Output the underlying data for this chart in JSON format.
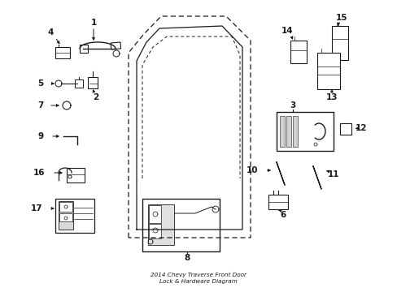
{
  "bg_color": "#ffffff",
  "line_color": "#1a1a1a",
  "title": "2014 Chevy Traverse Front Door\nLock & Hardware Diagram"
}
